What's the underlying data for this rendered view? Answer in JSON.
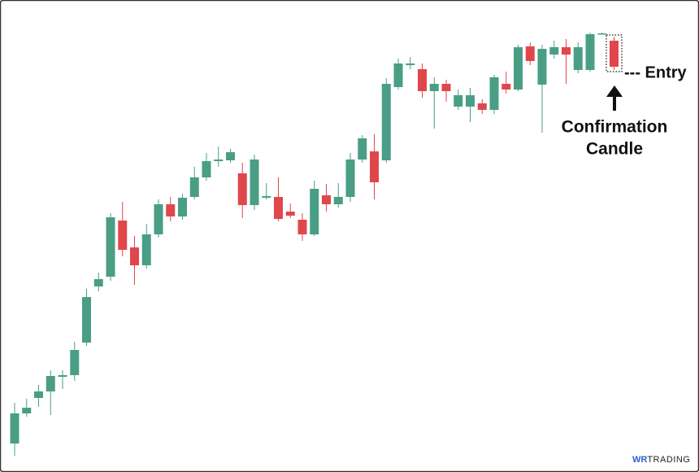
{
  "chart_data": {
    "type": "candlestick",
    "open": [
      35,
      72,
      91,
      99,
      117,
      119,
      159,
      228,
      240,
      309,
      276,
      254,
      292,
      329,
      314,
      338,
      362,
      382,
      383,
      367,
      328,
      337,
      338,
      320,
      310,
      292,
      340,
      329,
      338,
      384,
      394,
      383,
      473,
      500,
      495,
      468,
      477,
      449,
      449,
      453,
      445,
      477,
      470,
      523,
      476,
      513,
      522,
      494,
      494,
      538,
      530
    ],
    "high": [
      85,
      90,
      107,
      125,
      125,
      160,
      225,
      245,
      318,
      332,
      290,
      305,
      335,
      338,
      342,
      375,
      392,
      400,
      397,
      380,
      390,
      355,
      362,
      330,
      318,
      358,
      354,
      355,
      392,
      414,
      415,
      484,
      508,
      510,
      502,
      485,
      482,
      470,
      472,
      458,
      488,
      492,
      525,
      528,
      525,
      530,
      532,
      528,
      540,
      540,
      535
    ],
    "low": [
      20,
      68,
      80,
      70,
      102,
      112,
      155,
      222,
      235,
      265,
      230,
      250,
      288,
      308,
      310,
      335,
      358,
      375,
      380,
      312,
      322,
      335,
      308,
      312,
      284,
      290,
      320,
      325,
      332,
      380,
      335,
      380,
      470,
      495,
      460,
      422,
      455,
      445,
      430,
      440,
      440,
      465,
      468,
      500,
      417,
      508,
      477,
      490,
      492,
      538,
      494
    ],
    "close": [
      72,
      79,
      99,
      118,
      119,
      150,
      215,
      237,
      313,
      273,
      254,
      292,
      329,
      314,
      337,
      362,
      382,
      384,
      393,
      328,
      384,
      339,
      311,
      315,
      292,
      348,
      329,
      338,
      384,
      410,
      356,
      477,
      502,
      502,
      468,
      477,
      468,
      463,
      463,
      445,
      485,
      470,
      522,
      505,
      520,
      522,
      513,
      522,
      538,
      539,
      498
    ],
    "up_color": "#4a9e85",
    "down_color": "#e0474c",
    "ylim": [
      0,
      580
    ],
    "annotations": {
      "entry": "--- Entry",
      "confirmation": [
        "Confirmation",
        "Candle"
      ]
    },
    "logo": {
      "mark": "WR",
      "text": "TRADING"
    }
  }
}
